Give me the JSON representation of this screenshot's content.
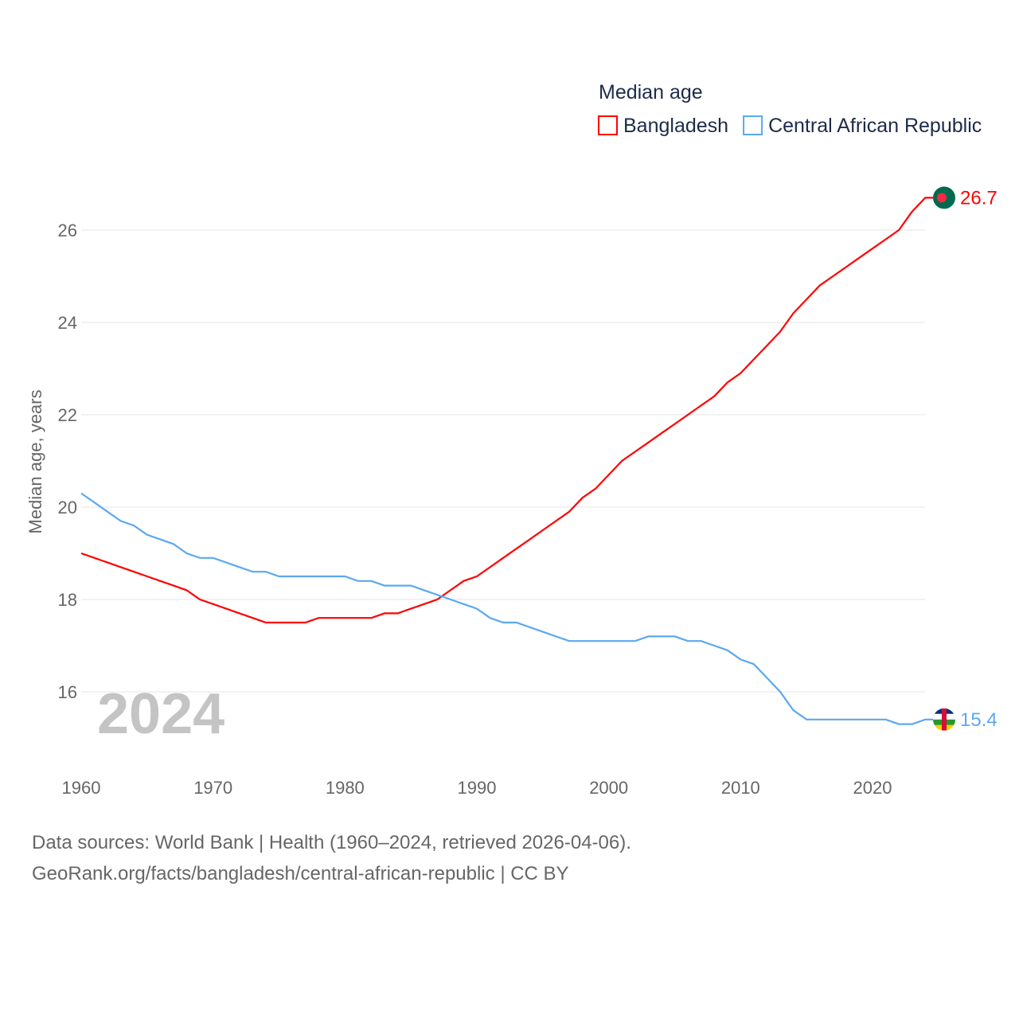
{
  "chart_data": {
    "type": "line",
    "title": "Median age",
    "ylabel": "Median age, years",
    "xlabel": "",
    "xlim": [
      1960,
      2024
    ],
    "ylim": [
      14.8,
      27
    ],
    "xticks": [
      1960,
      1970,
      1980,
      1990,
      2000,
      2010,
      2020
    ],
    "yticks": [
      16,
      18,
      20,
      22,
      24,
      26
    ],
    "grid": true,
    "legend_position": "top-right",
    "year_label": "2024",
    "x": [
      1960,
      1961,
      1962,
      1963,
      1964,
      1965,
      1966,
      1967,
      1968,
      1969,
      1970,
      1971,
      1972,
      1973,
      1974,
      1975,
      1976,
      1977,
      1978,
      1979,
      1980,
      1981,
      1982,
      1983,
      1984,
      1985,
      1986,
      1987,
      1988,
      1989,
      1990,
      1991,
      1992,
      1993,
      1994,
      1995,
      1996,
      1997,
      1998,
      1999,
      2000,
      2001,
      2002,
      2003,
      2004,
      2005,
      2006,
      2007,
      2008,
      2009,
      2010,
      2011,
      2012,
      2013,
      2014,
      2015,
      2016,
      2017,
      2018,
      2019,
      2020,
      2021,
      2022,
      2023,
      2024
    ],
    "series": [
      {
        "name": "Bangladesh",
        "color": "#ff0000",
        "end_label": "26.7",
        "values": [
          19.0,
          18.9,
          18.8,
          18.7,
          18.6,
          18.5,
          18.4,
          18.3,
          18.2,
          18.0,
          17.9,
          17.8,
          17.7,
          17.6,
          17.5,
          17.5,
          17.5,
          17.5,
          17.6,
          17.6,
          17.6,
          17.6,
          17.6,
          17.7,
          17.7,
          17.8,
          17.9,
          18.0,
          18.2,
          18.4,
          18.5,
          18.7,
          18.9,
          19.1,
          19.3,
          19.5,
          19.7,
          19.9,
          20.2,
          20.4,
          20.7,
          21.0,
          21.2,
          21.4,
          21.6,
          21.8,
          22.0,
          22.2,
          22.4,
          22.7,
          22.9,
          23.2,
          23.5,
          23.8,
          24.2,
          24.5,
          24.8,
          25.0,
          25.2,
          25.4,
          25.6,
          25.8,
          26.0,
          26.4,
          26.7
        ]
      },
      {
        "name": "Central African Republic",
        "color": "#5ca8f0",
        "end_label": "15.4",
        "values": [
          20.3,
          20.1,
          19.9,
          19.7,
          19.6,
          19.4,
          19.3,
          19.2,
          19.0,
          18.9,
          18.9,
          18.8,
          18.7,
          18.6,
          18.6,
          18.5,
          18.5,
          18.5,
          18.5,
          18.5,
          18.5,
          18.4,
          18.4,
          18.3,
          18.3,
          18.3,
          18.2,
          18.1,
          18.0,
          17.9,
          17.8,
          17.6,
          17.5,
          17.5,
          17.4,
          17.3,
          17.2,
          17.1,
          17.1,
          17.1,
          17.1,
          17.1,
          17.1,
          17.2,
          17.2,
          17.2,
          17.1,
          17.1,
          17.0,
          16.9,
          16.7,
          16.6,
          16.3,
          16.0,
          15.6,
          15.4,
          15.4,
          15.4,
          15.4,
          15.4,
          15.4,
          15.4,
          15.3,
          15.3,
          15.4
        ]
      }
    ]
  },
  "footer": {
    "line1": "Data sources: World Bank | Health (1960–2024, retrieved 2026-04-06).",
    "line2": "GeoRank.org/facts/bangladesh/central-african-republic | CC BY"
  }
}
